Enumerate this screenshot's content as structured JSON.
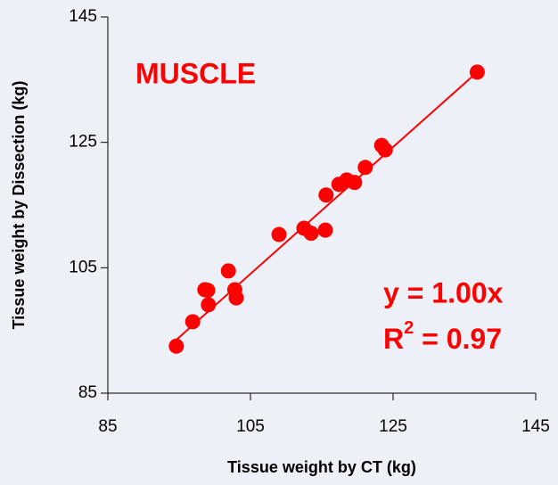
{
  "chart_data": {
    "type": "scatter",
    "xlabel": "Tissue weight by CT (kg)",
    "ylabel": "Tissue weight by Dissection (kg)",
    "xlim": [
      85,
      145
    ],
    "ylim": [
      85,
      145
    ],
    "xticks": [
      85,
      105,
      125,
      145
    ],
    "yticks": [
      85,
      105,
      125,
      145
    ],
    "color": "#ff0000",
    "x": [
      94.6,
      96.9,
      98.6,
      99.0,
      99.1,
      101.9,
      102.8,
      103.0,
      109.0,
      112.5,
      113.5,
      115.5,
      115.6,
      117.4,
      118.5,
      119.6,
      121.1,
      123.4,
      123.9,
      136.8
    ],
    "values": [
      92.5,
      96.4,
      101.5,
      101.4,
      99.1,
      104.5,
      101.5,
      100.2,
      110.3,
      111.3,
      110.5,
      111.0,
      116.6,
      118.3,
      119.0,
      118.6,
      121.0,
      124.5,
      123.8,
      136.2
    ],
    "trendline": {
      "x": [
        94.1,
        136.8
      ],
      "values": [
        93.0,
        136.2
      ]
    },
    "label": "MUSCLE",
    "equation": "y = 1.00x",
    "r2": {
      "base": "R",
      "sup": "2",
      "rest": " = 0.97"
    }
  }
}
